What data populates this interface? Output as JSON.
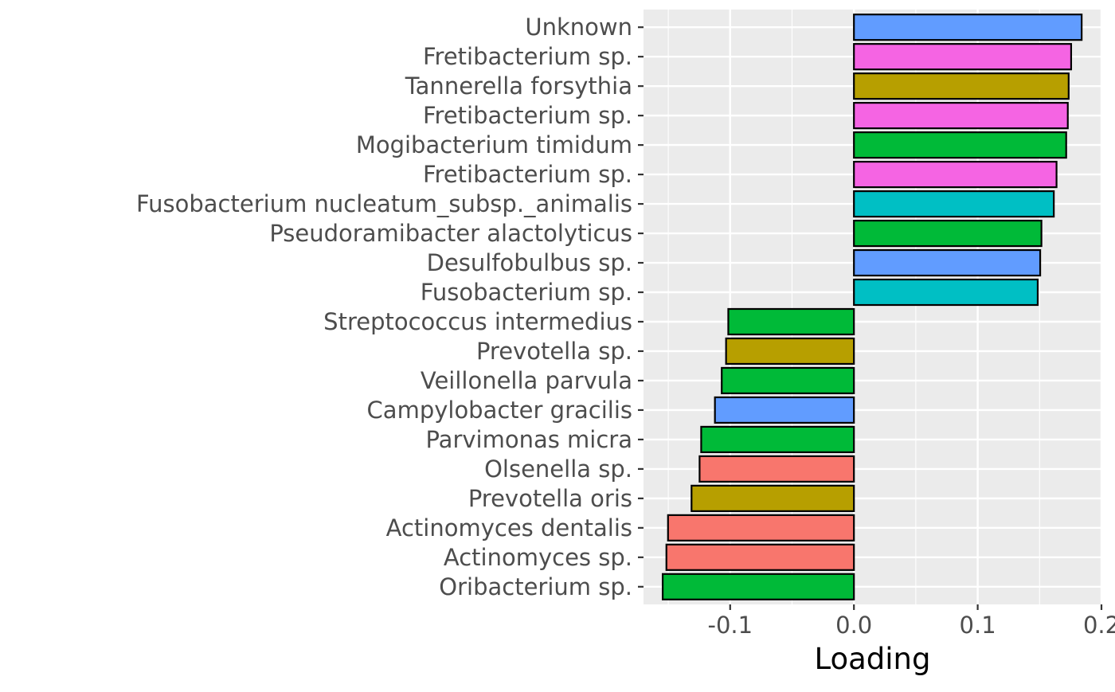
{
  "chart_data": {
    "type": "bar",
    "orientation": "horizontal",
    "title": "",
    "xlabel": "Loading",
    "ylabel": "",
    "xlim": [
      -0.17,
      0.2
    ],
    "x_ticks": [
      {
        "value": -0.1,
        "label": "-0.1"
      },
      {
        "value": 0.0,
        "label": "0.0"
      },
      {
        "value": 0.1,
        "label": "0.1"
      },
      {
        "value": 0.2,
        "label": "0.2"
      }
    ],
    "grid": true,
    "legend": "none",
    "bars": [
      {
        "category": "Unknown",
        "value": 0.184,
        "color": "#619CFF"
      },
      {
        "category": "Fretibacterium sp.",
        "value": 0.1755,
        "color": "#F564E3"
      },
      {
        "category": "Tannerella forsythia",
        "value": 0.1735,
        "color": "#B79F00"
      },
      {
        "category": "Fretibacterium sp.",
        "value": 0.1728,
        "color": "#F564E3"
      },
      {
        "category": "Mogibacterium timidum",
        "value": 0.1715,
        "color": "#00BA38"
      },
      {
        "category": "Fretibacterium sp.",
        "value": 0.1637,
        "color": "#F564E3"
      },
      {
        "category": "Fusobacterium nucleatum_subsp._animalis",
        "value": 0.1615,
        "color": "#00BFC4"
      },
      {
        "category": "Pseudoramibacter alactolyticus",
        "value": 0.1515,
        "color": "#00BA38"
      },
      {
        "category": "Desulfobulbus sp.",
        "value": 0.1505,
        "color": "#619CFF"
      },
      {
        "category": "Fusobacterium sp.",
        "value": 0.1485,
        "color": "#00BFC4"
      },
      {
        "category": "Streptococcus intermedius",
        "value": -0.1015,
        "color": "#00BA38"
      },
      {
        "category": "Prevotella sp.",
        "value": -0.1033,
        "color": "#B79F00"
      },
      {
        "category": "Veillonella parvula",
        "value": -0.1068,
        "color": "#00BA38"
      },
      {
        "category": "Campylobacter gracilis",
        "value": -0.1123,
        "color": "#619CFF"
      },
      {
        "category": "Parvimonas micra",
        "value": -0.1234,
        "color": "#00BA38"
      },
      {
        "category": "Olsenella sp.",
        "value": -0.1247,
        "color": "#F8766D"
      },
      {
        "category": "Prevotella oris",
        "value": -0.1312,
        "color": "#B79F00"
      },
      {
        "category": "Actinomyces dentalis",
        "value": -0.1502,
        "color": "#F8766D"
      },
      {
        "category": "Actinomyces sp.",
        "value": -0.1515,
        "color": "#F8766D"
      },
      {
        "category": "Oribacterium sp.",
        "value": -0.1545,
        "color": "#00BA38"
      }
    ]
  },
  "style": {
    "panel_background": "#EBEBEB",
    "grid_color": "#FFFFFF",
    "bar_outline": "#000000",
    "tick_color": "#333333",
    "tick_label_color": "#4D4D4D"
  }
}
